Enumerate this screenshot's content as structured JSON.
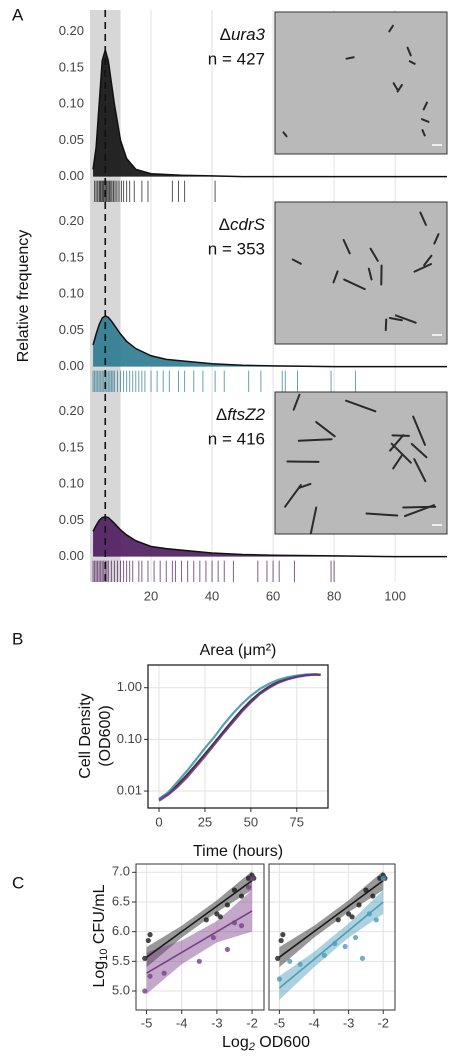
{
  "chart_data": [
    {
      "type": "density",
      "panel": "A",
      "ylabel": "Relative frequency",
      "xlabel": "Area (μm²)",
      "xlim": [
        0,
        117
      ],
      "xticks": [
        20,
        40,
        60,
        80,
        100
      ],
      "ylim": [
        -0.035,
        0.23
      ],
      "yticks": [
        {
          "value": 0,
          "label": "0.00"
        },
        0.05,
        {
          "value": 0.1,
          "label": "0.10"
        },
        0.15,
        {
          "value": 0.2,
          "label": "0.20"
        }
      ],
      "shade": [
        0,
        10
      ],
      "vline": 5,
      "x": [
        1,
        2,
        3,
        4,
        5,
        6,
        7,
        8,
        10,
        12,
        15,
        20,
        25,
        30,
        40,
        50,
        60,
        80,
        100,
        117
      ],
      "facets": [
        {
          "label_prefix": "Δ",
          "label": "ura3",
          "n_label": "n = 427",
          "color": "#111111",
          "values": [
            0.01,
            0.04,
            0.1,
            0.16,
            0.175,
            0.16,
            0.13,
            0.1,
            0.05,
            0.025,
            0.01,
            0.004,
            0.003,
            0.002,
            0.001,
            0,
            0,
            0,
            0,
            0
          ],
          "rug": [
            1.5,
            2,
            2.5,
            3,
            3.3,
            3.6,
            4,
            4.3,
            4.6,
            5,
            5.3,
            5.6,
            6,
            6.4,
            6.8,
            7.2,
            7.7,
            8.2,
            8.8,
            9.5,
            10.3,
            11,
            12,
            13,
            14.5,
            17,
            19,
            27,
            29,
            31,
            41
          ]
        },
        {
          "label_prefix": "Δ",
          "label": "cdrS",
          "n_label": "n = 353",
          "color": "#2b7a91",
          "values": [
            0.03,
            0.045,
            0.058,
            0.067,
            0.07,
            0.068,
            0.063,
            0.057,
            0.045,
            0.035,
            0.025,
            0.015,
            0.01,
            0.008,
            0.004,
            0.002,
            0.001,
            0,
            0,
            0
          ],
          "rug": [
            1,
            1.5,
            2,
            2.5,
            3,
            3.5,
            4,
            4.5,
            5,
            5.5,
            6,
            6.5,
            7,
            7.5,
            8,
            9,
            10,
            11,
            12,
            13,
            14,
            15,
            16,
            17,
            18,
            20,
            22,
            24,
            26,
            29,
            31,
            34,
            37,
            41,
            44,
            52,
            56,
            63,
            64,
            68,
            79,
            87
          ]
        },
        {
          "label_prefix": "Δ",
          "label": "ftsZ2",
          "n_label": "n = 416",
          "color": "#4e1a5e",
          "values": [
            0.035,
            0.043,
            0.05,
            0.054,
            0.055,
            0.054,
            0.05,
            0.046,
            0.037,
            0.03,
            0.022,
            0.014,
            0.011,
            0.009,
            0.005,
            0.003,
            0.002,
            0.001,
            0,
            0
          ],
          "rug": [
            1,
            1.5,
            2,
            2.5,
            3,
            3.5,
            4,
            4.5,
            5,
            5.5,
            6,
            7,
            8,
            9,
            10,
            11,
            12,
            13,
            14,
            16,
            17,
            19,
            21,
            23,
            25,
            27,
            28,
            30,
            32,
            34,
            36,
            38,
            40,
            42,
            44,
            47,
            55,
            58,
            60,
            62,
            67,
            79,
            80
          ]
        }
      ]
    },
    {
      "type": "line",
      "panel": "B",
      "xlabel": "Time (hours)",
      "ylabel": [
        "Cell Density",
        "(OD600)"
      ],
      "log_y": true,
      "xlim": [
        -6,
        92
      ],
      "ylim": [
        0.0047,
        2.75
      ],
      "xticks": [
        0,
        25,
        50,
        75
      ],
      "yticks": [
        {
          "value": 0.01,
          "label": "0.01"
        },
        {
          "value": 0.1,
          "label": "0.10"
        },
        {
          "value": 1,
          "label": "1.00"
        }
      ],
      "x": [
        0,
        5,
        10,
        15,
        20,
        25,
        30,
        35,
        40,
        45,
        50,
        55,
        60,
        65,
        70,
        75,
        80,
        85,
        88
      ],
      "series": [
        {
          "color": "#1a1a1a",
          "values": [
            0.007,
            0.009,
            0.013,
            0.02,
            0.032,
            0.052,
            0.085,
            0.14,
            0.23,
            0.37,
            0.56,
            0.8,
            1.05,
            1.3,
            1.5,
            1.65,
            1.75,
            1.8,
            1.78
          ]
        },
        {
          "color": "#3a8fa8",
          "values": [
            0.007,
            0.0095,
            0.015,
            0.024,
            0.04,
            0.068,
            0.11,
            0.19,
            0.31,
            0.48,
            0.7,
            0.95,
            1.2,
            1.42,
            1.6,
            1.72,
            1.8,
            1.82,
            1.78
          ]
        },
        {
          "color": "#6b2d7b",
          "values": [
            0.0065,
            0.0085,
            0.012,
            0.018,
            0.029,
            0.047,
            0.078,
            0.13,
            0.21,
            0.34,
            0.52,
            0.76,
            1.0,
            1.25,
            1.45,
            1.62,
            1.73,
            1.8,
            1.78
          ]
        }
      ]
    },
    {
      "type": "scatter",
      "panel": "C",
      "xlabel": [
        "Log",
        "2",
        " OD600"
      ],
      "ylabel": [
        "Log",
        "10",
        " CFU/mL"
      ],
      "xlim": [
        -5.3,
        -1.66
      ],
      "ylim": [
        4.68,
        7.14
      ],
      "xticks": [
        -5,
        -4,
        -3,
        -2
      ],
      "yticks": [
        {
          "value": 5,
          "label": "5.0"
        },
        5.5,
        {
          "value": 6,
          "label": "6.0"
        },
        6.5,
        {
          "value": 7,
          "label": "7.0"
        }
      ],
      "facets": [
        {
          "series": [
            {
              "color": "#1a1a1a",
              "x": [
                -5.05,
                -4.95,
                -4.9,
                -3.3,
                -3.0,
                -2.9,
                -2.7,
                -2.5,
                -2.3,
                -2.1,
                -2.0,
                -1.95
              ],
              "values": [
                5.55,
                5.85,
                5.95,
                6.2,
                6.3,
                6.25,
                6.45,
                6.7,
                6.6,
                6.9,
                6.95,
                6.9
              ],
              "fit_x": [
                -5,
                -4,
                -3,
                -2
              ],
              "fit": [
                5.57,
                6.0,
                6.43,
                6.86
              ],
              "band_lower": [
                5.4,
                5.9,
                6.33,
                6.7
              ],
              "band_upper": [
                5.74,
                6.1,
                6.53,
                7.02
              ]
            },
            {
              "color": "#7a3f8a",
              "x": [
                -5.05,
                -4.9,
                -4.5,
                -3.5,
                -3.1,
                -2.7,
                -2.5,
                -2.3,
                -2.1,
                -2.0
              ],
              "values": [
                5.0,
                5.25,
                5.3,
                5.5,
                5.9,
                5.7,
                6.15,
                6.1,
                6.75,
                6.9
              ],
              "fit_x": [
                -5,
                -4,
                -3,
                -2
              ],
              "fit": [
                5.3,
                5.65,
                6.0,
                6.35
              ],
              "band_lower": [
                4.95,
                5.45,
                5.82,
                6.0
              ],
              "band_upper": [
                5.65,
                5.85,
                6.18,
                6.7
              ]
            }
          ]
        },
        {
          "series": [
            {
              "color": "#1a1a1a",
              "x": [
                -5.05,
                -4.95,
                -4.9,
                -3.3,
                -3.0,
                -2.9,
                -2.7,
                -2.5,
                -2.3,
                -2.1,
                -2.0,
                -1.95
              ],
              "values": [
                5.55,
                5.85,
                5.95,
                6.2,
                6.3,
                6.25,
                6.45,
                6.7,
                6.6,
                6.9,
                6.95,
                6.9
              ],
              "fit_x": [
                -5,
                -4,
                -3,
                -2
              ],
              "fit": [
                5.57,
                6.0,
                6.43,
                6.86
              ],
              "band_lower": [
                5.4,
                5.9,
                6.33,
                6.7
              ],
              "band_upper": [
                5.74,
                6.1,
                6.53,
                7.02
              ]
            },
            {
              "color": "#4a9cb8",
              "x": [
                -5.0,
                -4.7,
                -4.4,
                -3.7,
                -3.4,
                -3.1,
                -2.8,
                -2.6,
                -2.4,
                -2.2,
                -2.0
              ],
              "values": [
                5.2,
                5.5,
                5.45,
                5.6,
                5.8,
                5.75,
                5.9,
                5.55,
                6.3,
                6.2,
                6.9
              ],
              "fit_x": [
                -5,
                -4,
                -3,
                -2
              ],
              "fit": [
                5.05,
                5.53,
                6.02,
                6.5
              ],
              "band_lower": [
                4.85,
                5.4,
                5.9,
                6.3
              ],
              "band_upper": [
                5.25,
                5.66,
                6.14,
                6.7
              ]
            }
          ]
        }
      ]
    }
  ]
}
